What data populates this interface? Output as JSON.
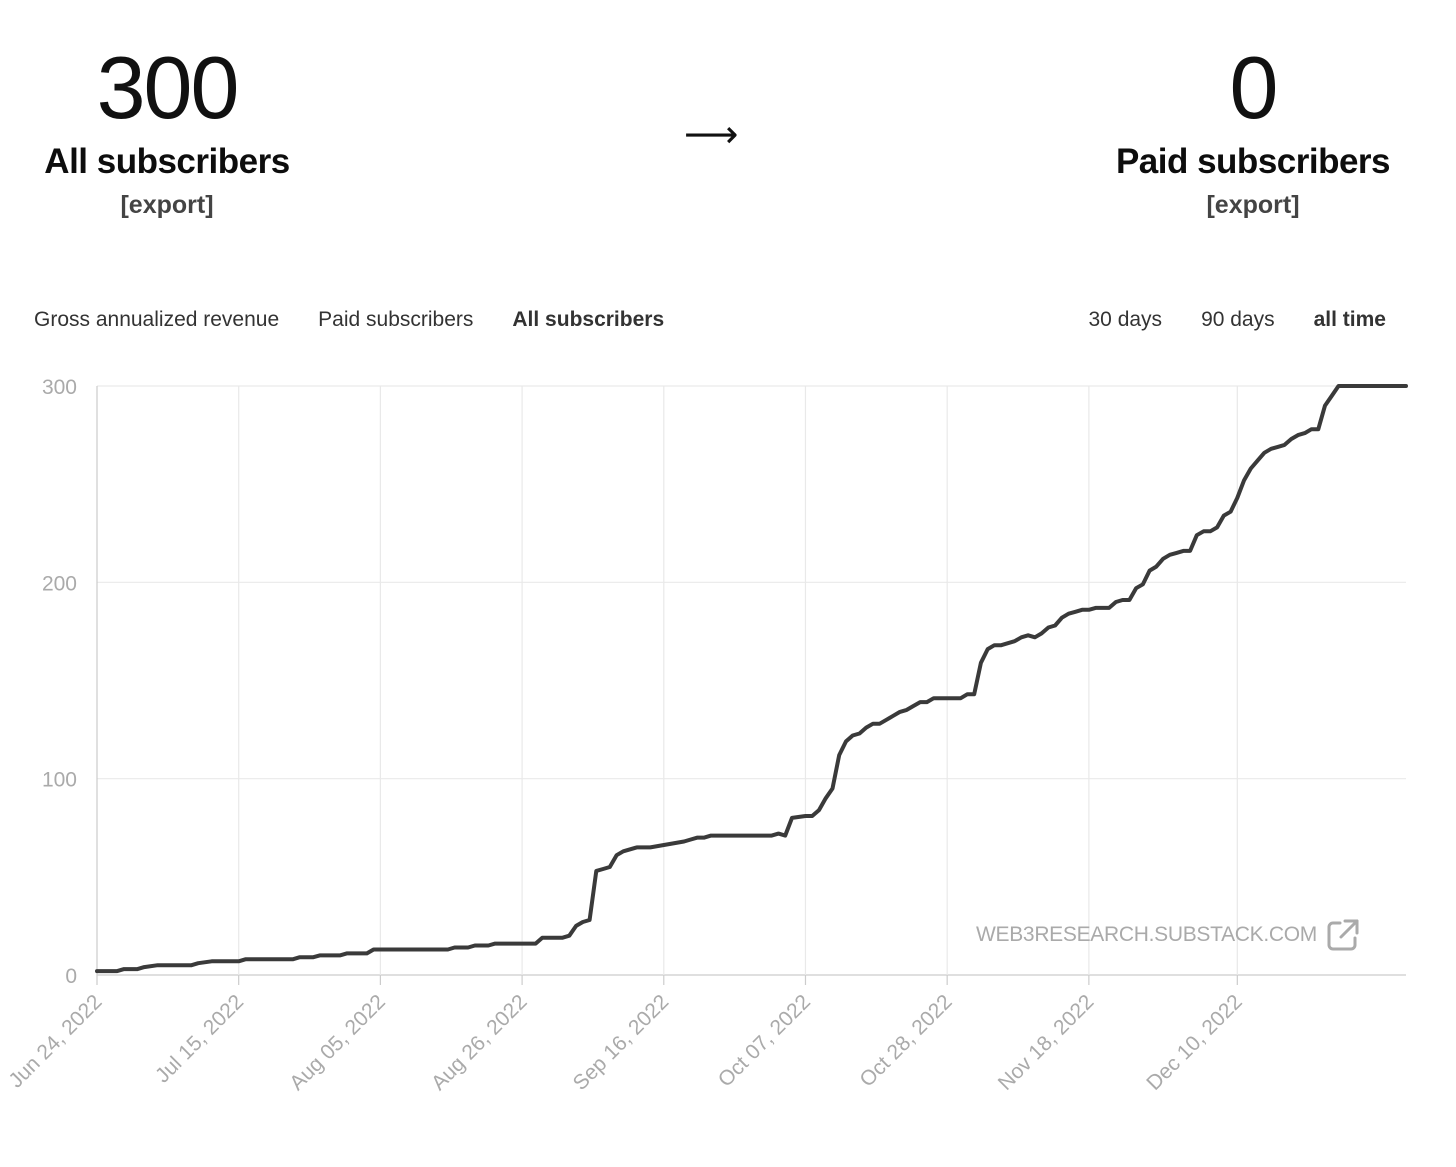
{
  "stats": {
    "all": {
      "value": "300",
      "label": "All subscribers",
      "export": "[export]"
    },
    "arrow": "⟶",
    "paid": {
      "value": "0",
      "label": "Paid subscribers",
      "export": "[export]"
    }
  },
  "metric_tabs": [
    {
      "label": "Gross annualized revenue",
      "active": false
    },
    {
      "label": "Paid subscribers",
      "active": false
    },
    {
      "label": "All subscribers",
      "active": true
    }
  ],
  "range_tabs": [
    {
      "label": "30 days",
      "active": false
    },
    {
      "label": "90 days",
      "active": false
    },
    {
      "label": "all time",
      "active": true
    }
  ],
  "watermark": {
    "text": "WEB3RESEARCH.SUBSTACK.COM",
    "icon": "external-link-icon"
  },
  "colors": {
    "line": "#3a3a3a",
    "grid": "#e9e9e9",
    "axis": "#cccccc",
    "tick_text": "#aaaaaa"
  },
  "chart_data": {
    "type": "line",
    "title": "",
    "xlabel": "",
    "ylabel": "",
    "ylim": [
      0,
      300
    ],
    "yticks": [
      0,
      100,
      200,
      300
    ],
    "xticks": [
      "Jun 24, 2022",
      "Jul 15, 2022",
      "Aug 05, 2022",
      "Aug 26, 2022",
      "Sep 16, 2022",
      "Oct 07, 2022",
      "Oct 28, 2022",
      "Nov 18, 2022",
      "Dec 10, 2022"
    ],
    "grid": true,
    "legend": "none",
    "series": [
      {
        "x": [
          "2022-06-24",
          "2022-06-27",
          "2022-06-28",
          "2022-06-30",
          "2022-07-01",
          "2022-07-03",
          "2022-07-08",
          "2022-07-09",
          "2022-07-11",
          "2022-07-15",
          "2022-07-16",
          "2022-07-23",
          "2022-07-24",
          "2022-07-26",
          "2022-07-27",
          "2022-07-30",
          "2022-07-31",
          "2022-08-03",
          "2022-08-04",
          "2022-08-15",
          "2022-08-16",
          "2022-08-18",
          "2022-08-19",
          "2022-08-21",
          "2022-08-22",
          "2022-08-25",
          "2022-08-28",
          "2022-08-29",
          "2022-09-01",
          "2022-09-02",
          "2022-09-03",
          "2022-09-04",
          "2022-09-05",
          "2022-09-06",
          "2022-09-07",
          "2022-09-08",
          "2022-09-09",
          "2022-09-10",
          "2022-09-12",
          "2022-09-13",
          "2022-09-14",
          "2022-09-19",
          "2022-09-20",
          "2022-09-21",
          "2022-09-22",
          "2022-09-23",
          "2022-09-24",
          "2022-10-02",
          "2022-10-03",
          "2022-10-04",
          "2022-10-05",
          "2022-10-07",
          "2022-10-08",
          "2022-10-09",
          "2022-10-10",
          "2022-10-11",
          "2022-10-12",
          "2022-10-13",
          "2022-10-14",
          "2022-10-15",
          "2022-10-16",
          "2022-10-17",
          "2022-10-18",
          "2022-10-19",
          "2022-10-20",
          "2022-10-21",
          "2022-10-22",
          "2022-10-23",
          "2022-10-24",
          "2022-10-25",
          "2022-10-26",
          "2022-10-27",
          "2022-10-30",
          "2022-10-31",
          "2022-11-01",
          "2022-11-02",
          "2022-11-03",
          "2022-11-04",
          "2022-11-05",
          "2022-11-07",
          "2022-11-08",
          "2022-11-09",
          "2022-11-10",
          "2022-11-11",
          "2022-11-12",
          "2022-11-13",
          "2022-11-14",
          "2022-11-15",
          "2022-11-16",
          "2022-11-17",
          "2022-11-18",
          "2022-11-19",
          "2022-11-20",
          "2022-11-21",
          "2022-11-22",
          "2022-11-23",
          "2022-11-24",
          "2022-11-25",
          "2022-11-26",
          "2022-11-27",
          "2022-11-28",
          "2022-11-29",
          "2022-11-30",
          "2022-12-01",
          "2022-12-02",
          "2022-12-03",
          "2022-12-04",
          "2022-12-05",
          "2022-12-06",
          "2022-12-07",
          "2022-12-08",
          "2022-12-09",
          "2022-12-10",
          "2022-12-11",
          "2022-12-12",
          "2022-12-13",
          "2022-12-14",
          "2022-12-15",
          "2022-12-16",
          "2022-12-17",
          "2022-12-18",
          "2022-12-19",
          "2022-12-20",
          "2022-12-21",
          "2022-12-22",
          "2022-12-23",
          "2022-12-24",
          "2022-12-25",
          "2022-12-26",
          "2022-12-27",
          "2022-12-28",
          "2022-12-29",
          "2022-12-30",
          "2022-12-31",
          "2023-01-01",
          "2023-01-02",
          "2023-01-03",
          "2023-01-04"
        ],
        "values": [
          2,
          2,
          3,
          3,
          4,
          5,
          5,
          6,
          7,
          7,
          8,
          8,
          9,
          9,
          10,
          10,
          11,
          11,
          13,
          13,
          14,
          14,
          15,
          15,
          16,
          16,
          16,
          19,
          19,
          20,
          25,
          27,
          28,
          53,
          54,
          55,
          61,
          63,
          65,
          65,
          65,
          68,
          69,
          70,
          70,
          71,
          71,
          71,
          72,
          71,
          80,
          81,
          81,
          84,
          90,
          95,
          112,
          119,
          122,
          123,
          126,
          128,
          128,
          130,
          132,
          134,
          135,
          137,
          139,
          139,
          141,
          141,
          141,
          143,
          143,
          159,
          166,
          168,
          168,
          170,
          172,
          173,
          172,
          174,
          177,
          178,
          182,
          184,
          185,
          186,
          186,
          187,
          187,
          187,
          190,
          191,
          191,
          197,
          199,
          206,
          208,
          212,
          214,
          215,
          216,
          216,
          224,
          226,
          226,
          228,
          234,
          236,
          243,
          252,
          258,
          262,
          266,
          268,
          269,
          270,
          273,
          275,
          276,
          278,
          278,
          290,
          295,
          300,
          300,
          300,
          300,
          300,
          300,
          300,
          300,
          300,
          300,
          300
        ]
      }
    ]
  }
}
